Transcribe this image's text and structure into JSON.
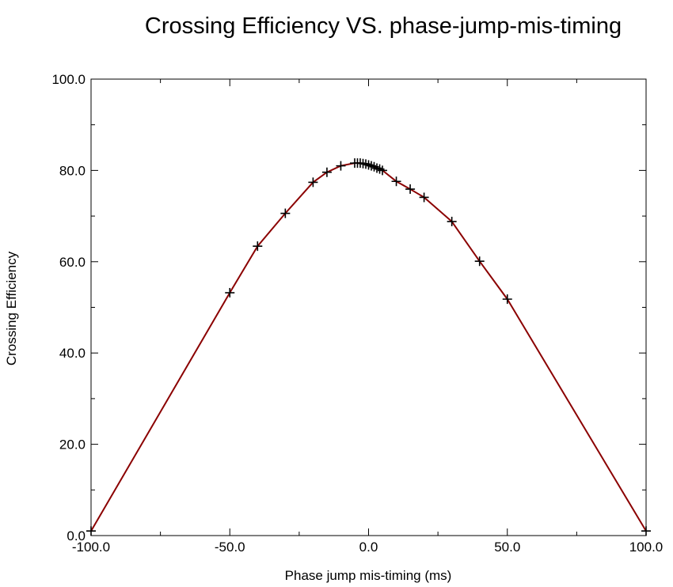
{
  "chart_data": {
    "type": "line",
    "title": "Crossing Efficiency VS. phase-jump-mis-timing",
    "xlabel": "Phase jump mis-timing (ms)",
    "ylabel": "Crossing Efficiency",
    "xlim": [
      -100,
      100
    ],
    "ylim": [
      0,
      100
    ],
    "x_ticks": [
      -100,
      -50,
      0,
      50,
      100
    ],
    "x_tick_labels": [
      "-100.0",
      "-50.0",
      "0.0",
      "50.0",
      "100.0"
    ],
    "y_ticks": [
      0,
      20,
      40,
      60,
      80,
      100
    ],
    "y_tick_labels": [
      "0.0",
      "20.0",
      "40.0",
      "60.0",
      "80.0",
      "100.0"
    ],
    "x_minor_step": 25,
    "y_minor_step": 10,
    "grid": false,
    "legend": "none",
    "line_color": "#8b0000",
    "marker_color": "#000000",
    "marker": "+",
    "series": [
      {
        "x": [
          -100,
          -50,
          -40,
          -30,
          -20,
          -15,
          -10,
          -5,
          -4,
          -3,
          -2,
          -1,
          0,
          1,
          2,
          3,
          4,
          5,
          10,
          15,
          20,
          30,
          40,
          50,
          100
        ],
        "y": [
          1.0,
          53.2,
          63.4,
          70.6,
          77.4,
          79.6,
          81.0,
          81.6,
          81.6,
          81.6,
          81.5,
          81.4,
          81.2,
          81.0,
          80.8,
          80.5,
          80.3,
          80.0,
          77.6,
          75.9,
          74.1,
          68.8,
          60.1,
          51.8,
          1.0
        ]
      }
    ]
  }
}
